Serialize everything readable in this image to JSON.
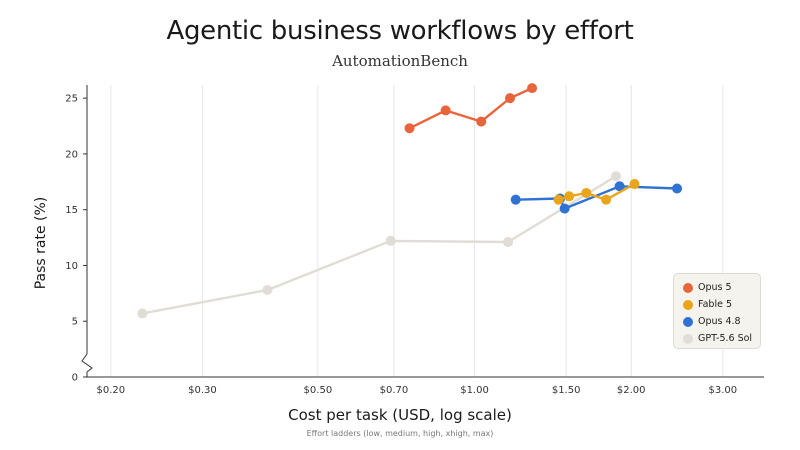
{
  "chart_data": {
    "type": "line",
    "title": "Agentic business workflows by effort",
    "subtitle": "AutomationBench",
    "xlabel": "Cost per task (USD, log scale)",
    "xnote": "Effort ladders (low, medium, high, xhigh, max)",
    "ylabel": "Pass rate (%)",
    "x_scale": "log",
    "xlim": [
      0.18,
      3.6
    ],
    "ylim": [
      0,
      26
    ],
    "x_ticks": [
      {
        "value": 0.2,
        "label": "$0.20"
      },
      {
        "value": 0.3,
        "label": "$0.30"
      },
      {
        "value": 0.5,
        "label": "$0.50"
      },
      {
        "value": 0.7,
        "label": "$0.70"
      },
      {
        "value": 1.0,
        "label": "$1.00"
      },
      {
        "value": 1.5,
        "label": "$1.50"
      },
      {
        "value": 2.0,
        "label": "$2.00"
      },
      {
        "value": 3.0,
        "label": "$3.00"
      }
    ],
    "y_ticks": [
      0,
      5,
      10,
      15,
      20,
      25
    ],
    "grid": "vertical",
    "axis_break": true,
    "legend_position": "bottom-right",
    "series": [
      {
        "name": "Opus 5",
        "color": "#e8643c",
        "points": [
          [
            0.75,
            22.3
          ],
          [
            0.88,
            23.9
          ],
          [
            1.03,
            22.9
          ],
          [
            1.17,
            25.0
          ],
          [
            1.29,
            25.9
          ]
        ]
      },
      {
        "name": "Fable 5",
        "color": "#eba51b",
        "points": [
          [
            1.45,
            15.9
          ],
          [
            1.52,
            16.2
          ],
          [
            1.64,
            16.5
          ],
          [
            1.79,
            15.9
          ],
          [
            2.03,
            17.3
          ]
        ]
      },
      {
        "name": "Opus 4.8",
        "color": "#2f72d4",
        "points": [
          [
            1.2,
            15.9
          ],
          [
            1.46,
            16.0
          ],
          [
            1.49,
            15.1
          ],
          [
            1.9,
            17.1
          ],
          [
            2.45,
            16.9
          ]
        ]
      },
      {
        "name": "GPT-5.6 Sol",
        "color": "#dfddd6",
        "points": [
          [
            0.23,
            5.7
          ],
          [
            0.4,
            7.8
          ],
          [
            0.69,
            12.2
          ],
          [
            1.16,
            12.1
          ],
          [
            1.87,
            18.0
          ]
        ]
      }
    ]
  }
}
